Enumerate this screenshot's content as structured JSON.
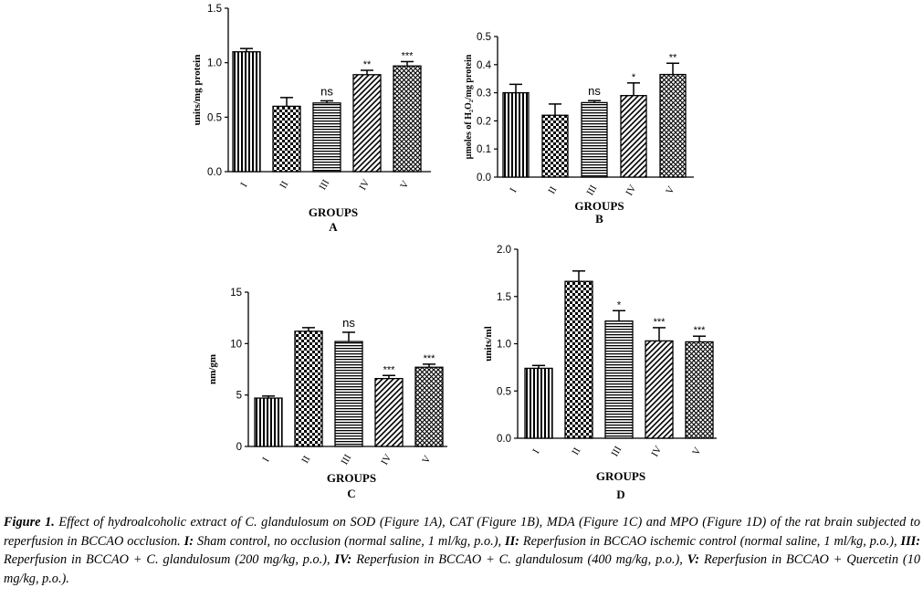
{
  "chart_data": [
    {
      "type": "bar",
      "panel": "A",
      "categories": [
        "I",
        "II",
        "III",
        "IV",
        "V"
      ],
      "values": [
        1.1,
        0.6,
        0.63,
        0.89,
        0.97
      ],
      "errors": [
        0.03,
        0.08,
        0.02,
        0.04,
        0.04
      ],
      "significance": [
        "",
        "",
        "ns",
        "**",
        "***"
      ],
      "yticks": [
        "0.0",
        "0.5",
        "1.0",
        "1.5"
      ],
      "ylim": [
        0,
        1.5
      ],
      "xlabel": "GROUPS",
      "ylabel": "units/mg protein",
      "label": "A"
    },
    {
      "type": "bar",
      "panel": "B",
      "categories": [
        "I",
        "II",
        "III",
        "IV",
        "V"
      ],
      "values": [
        0.3,
        0.22,
        0.265,
        0.29,
        0.365
      ],
      "errors": [
        0.03,
        0.04,
        0.007,
        0.045,
        0.04
      ],
      "significance": [
        "",
        "",
        "ns",
        "*",
        "**"
      ],
      "yticks": [
        "0.0",
        "0.1",
        "0.2",
        "0.3",
        "0.4",
        "0.5"
      ],
      "ylim": [
        0,
        0.5
      ],
      "xlabel": "GROUPS",
      "ylabel": "µmoles of H₂O₂/mg protein",
      "label": "B"
    },
    {
      "type": "bar",
      "panel": "C",
      "categories": [
        "I",
        "II",
        "III",
        "IV",
        "V"
      ],
      "values": [
        4.7,
        11.2,
        10.2,
        6.6,
        7.7
      ],
      "errors": [
        0.2,
        0.35,
        0.9,
        0.3,
        0.3
      ],
      "significance": [
        "",
        "",
        "ns",
        "***",
        "***"
      ],
      "yticks": [
        "0",
        "5",
        "10",
        "15"
      ],
      "ylim": [
        0,
        15
      ],
      "xlabel": "GROUPS",
      "ylabel": "nm/gm",
      "label": "C"
    },
    {
      "type": "bar",
      "panel": "D",
      "categories": [
        "I",
        "II",
        "III",
        "IV",
        "V"
      ],
      "values": [
        0.74,
        1.66,
        1.24,
        1.03,
        1.02
      ],
      "errors": [
        0.03,
        0.11,
        0.11,
        0.14,
        0.06
      ],
      "significance": [
        "",
        "",
        "*",
        "***",
        "***"
      ],
      "yticks": [
        "0.0",
        "0.5",
        "1.0",
        "1.5",
        "2.0"
      ],
      "ylim": [
        0,
        2.0
      ],
      "xlabel": "GROUPS",
      "ylabel": "units/ml",
      "label": "D"
    }
  ],
  "caption": {
    "figure_label": "Figure 1.",
    "intro": " Effect of hydroalcoholic extract of C. glandulosum on SOD (Figure 1A), CAT (Figure 1B), MDA (Figure 1C) and MPO (Figure 1D) of the rat brain subjected to reperfusion in BCCAO occlusion. ",
    "g1_label": "I:",
    "g1_text": " Sham control, no occlusion (normal saline, 1 ml/kg, p.o.), ",
    "g2_label": "II:",
    "g2_text": " Reperfusion in BCCAO ischemic control (normal saline, 1 ml/kg, p.o.), ",
    "g3_label": "III:",
    "g3_text": " Reperfusion in BCCAO + C. glandulosum (200 mg/kg, p.o.), ",
    "g4_label": "IV:",
    "g4_text": " Reperfusion in BCCAO + C. glandulosum (400 mg/kg, p.o.), ",
    "g5_label": "V:",
    "g5_text": " Reperfusion in BCCAO + Quercetin (10 mg/kg, p.o.)."
  }
}
